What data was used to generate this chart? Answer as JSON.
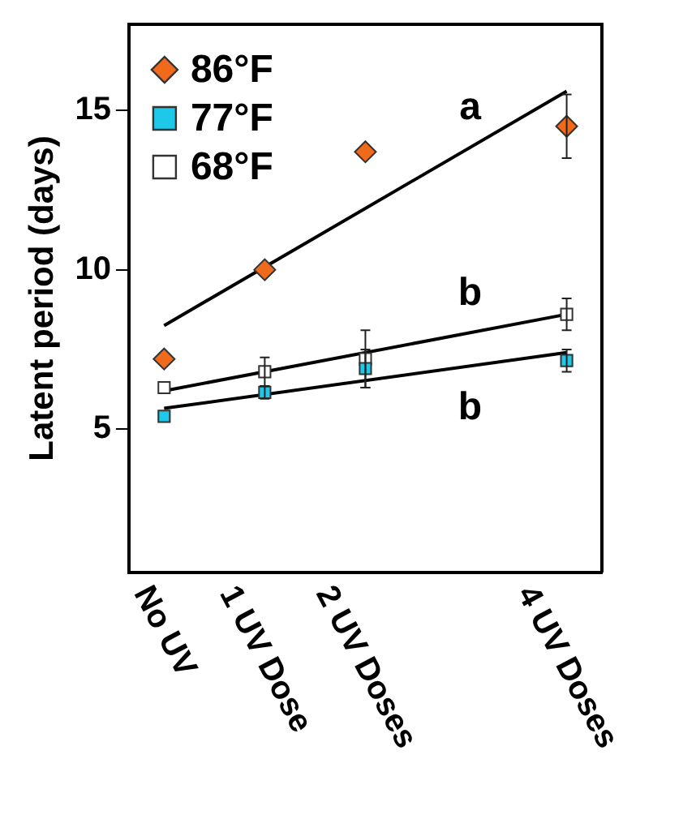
{
  "chart_data": {
    "type": "scatter",
    "ylabel": "Latent period (days)",
    "xlim": [
      -0.35,
      4.35
    ],
    "xticks": [
      {
        "value": 0,
        "label": "No UV"
      },
      {
        "value": 1,
        "label": "1 UV Dose"
      },
      {
        "value": 2,
        "label": "2 UV Doses"
      },
      {
        "value": 4,
        "label": "4 UV Doses"
      }
    ],
    "ylim": [
      0.5,
      17.7
    ],
    "yticks": [
      5,
      10,
      15
    ],
    "grid": false,
    "legend": "top left",
    "series": [
      {
        "name": "86°F",
        "color": "#f06a1c",
        "marker": "diamond",
        "x": [
          0,
          1,
          2,
          4
        ],
        "values": [
          7.2,
          10.0,
          13.7,
          14.5
        ],
        "errors": [
          null,
          null,
          null,
          1.0
        ]
      },
      {
        "name": "77°F",
        "color": "#1ec8e8",
        "marker": "square",
        "x": [
          0,
          1,
          2,
          4
        ],
        "values": [
          5.4,
          6.15,
          6.9,
          7.15
        ],
        "errors": [
          null,
          0.2,
          0.6,
          0.35
        ]
      },
      {
        "name": "68°F",
        "color": "#ffffff",
        "marker": "square",
        "x": [
          0,
          1,
          2,
          4
        ],
        "values": [
          6.3,
          6.8,
          7.2,
          8.6
        ],
        "errors": [
          null,
          0.45,
          0.9,
          0.5
        ]
      },
      {
        "type": "line",
        "color": "#000000",
        "marker": "none",
        "x": [
          0,
          4
        ],
        "values": [
          8.25,
          15.6
        ]
      },
      {
        "type": "line",
        "color": "#000000",
        "marker": "none",
        "x": [
          0,
          4
        ],
        "values": [
          6.2,
          8.6
        ]
      },
      {
        "type": "line",
        "color": "#000000",
        "marker": "none",
        "x": [
          0,
          4
        ],
        "values": [
          5.65,
          7.4
        ]
      }
    ],
    "annotations": [
      "a",
      "b",
      "b"
    ]
  }
}
